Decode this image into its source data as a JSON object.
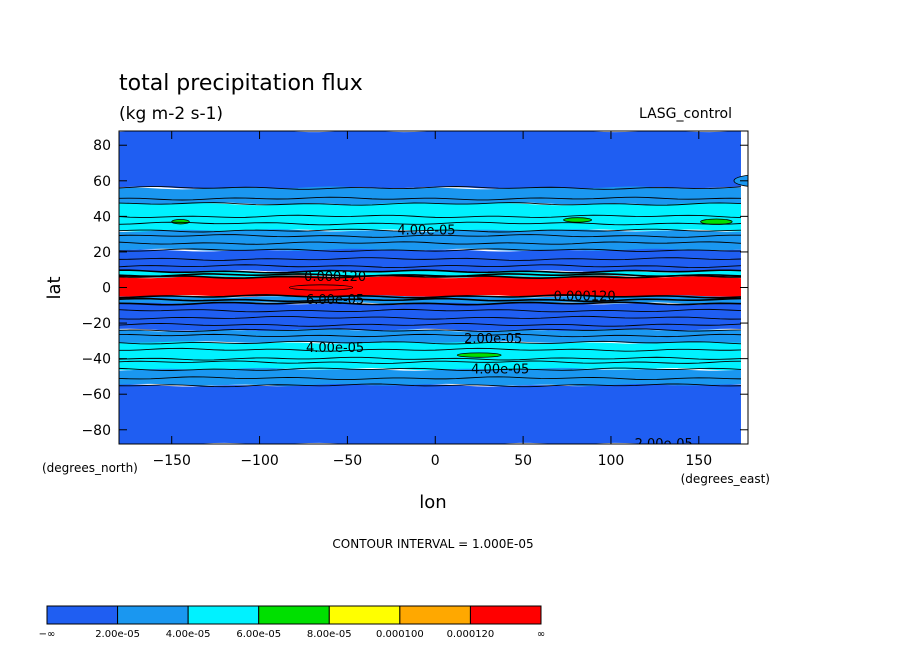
{
  "chart_data": {
    "type": "heatmap",
    "title": "total precipitation flux",
    "subtitle": "(kg m-2 s-1)",
    "dataset_label": "LASG_control",
    "xlabel": "lon",
    "ylabel": "lat",
    "x_units": "(degrees_east)",
    "y_units": "(degrees_north)",
    "xlim": [
      -180,
      178
    ],
    "ylim": [
      -88,
      88
    ],
    "xticks": [
      -150,
      -100,
      -50,
      0,
      50,
      100,
      150
    ],
    "xtick_labels": [
      "−150",
      "−100",
      "−50",
      "0",
      "50",
      "100",
      "150"
    ],
    "yticks": [
      80,
      60,
      40,
      20,
      0,
      -20,
      -40,
      -60,
      -80
    ],
    "ytick_labels": [
      "80",
      "60",
      "40",
      "20",
      "0",
      "−20",
      "−40",
      "−60",
      "−80"
    ],
    "contour_interval_text": "CONTOUR INTERVAL = 1.000E-05",
    "levels": [
      2e-05,
      4e-05,
      6e-05,
      8e-05,
      0.0001,
      0.00012
    ],
    "colorbar": {
      "colors": [
        "#1f5ef2",
        "#1a97f0",
        "#00f2ff",
        "#00e000",
        "#ffff00",
        "#ffa800",
        "#ff0000"
      ],
      "labels": [
        "−∞",
        "2.00e-05",
        "4.00e-05",
        "6.00e-05",
        "8.00e-05",
        "0.000100",
        "0.000120",
        "∞"
      ]
    },
    "zonal_bands": [
      {
        "lat_min": 56,
        "lat_max": 88,
        "level_index": 0
      },
      {
        "lat_min": 47,
        "lat_max": 56,
        "level_index": 1
      },
      {
        "lat_min": 32,
        "lat_max": 47,
        "level_index": 2
      },
      {
        "lat_min": 21,
        "lat_max": 32,
        "level_index": 1
      },
      {
        "lat_min": 9,
        "lat_max": 21,
        "level_index": 0
      },
      {
        "lat_min": 6,
        "lat_max": 9,
        "level_index": 2
      },
      {
        "lat_min": -5,
        "lat_max": 6,
        "level_index": 6
      },
      {
        "lat_min": -9,
        "lat_max": -5,
        "level_index": 1
      },
      {
        "lat_min": -24,
        "lat_max": -9,
        "level_index": 0
      },
      {
        "lat_min": -31,
        "lat_max": -24,
        "level_index": 1
      },
      {
        "lat_min": -46,
        "lat_max": -31,
        "level_index": 2
      },
      {
        "lat_min": -55,
        "lat_max": -46,
        "level_index": 1
      },
      {
        "lat_min": -88,
        "lat_max": -55,
        "level_index": 0
      }
    ],
    "contour_lines_lat": [
      56,
      50,
      47,
      40,
      36,
      32,
      29,
      25,
      21,
      16,
      12,
      9,
      7,
      6,
      -5,
      -7,
      -9,
      -13,
      -17,
      -21,
      -24,
      -27,
      -31,
      -35,
      -40,
      -42,
      -46,
      -51,
      -55
    ],
    "contour_labels": [
      {
        "text": "4.00e-05",
        "lon": -5,
        "lat": 32
      },
      {
        "text": "4.00e-05",
        "lon": -57,
        "lat": -34
      },
      {
        "text": "2.00e-05",
        "lon": 33,
        "lat": -29
      },
      {
        "text": "4.00e-05",
        "lon": 37,
        "lat": -46
      },
      {
        "text": "0.000120",
        "lon": 85,
        "lat": -5
      },
      {
        "text": "0.000120",
        "lon": -57,
        "lat": 6
      },
      {
        "text": "6.00e-05",
        "lon": -57,
        "lat": -7
      },
      {
        "text": "2.00e-05",
        "lon": 130,
        "lat": -88
      }
    ],
    "patches": [
      {
        "lon": -145,
        "lat": 37,
        "w": 10,
        "h": 2.5,
        "level_index": 3
      },
      {
        "lon": 81,
        "lat": 38,
        "w": 16,
        "h": 2.5,
        "level_index": 3
      },
      {
        "lon": 160,
        "lat": 37,
        "w": 18,
        "h": 3,
        "level_index": 3
      },
      {
        "lon": 25,
        "lat": -38,
        "w": 25,
        "h": 2.5,
        "level_index": 3
      },
      {
        "lon": 185,
        "lat": 60,
        "w": 30,
        "h": 7,
        "level_index": 1
      },
      {
        "lon": -65,
        "lat": 0,
        "w": 36,
        "h": 3,
        "level_index": 6
      }
    ]
  }
}
